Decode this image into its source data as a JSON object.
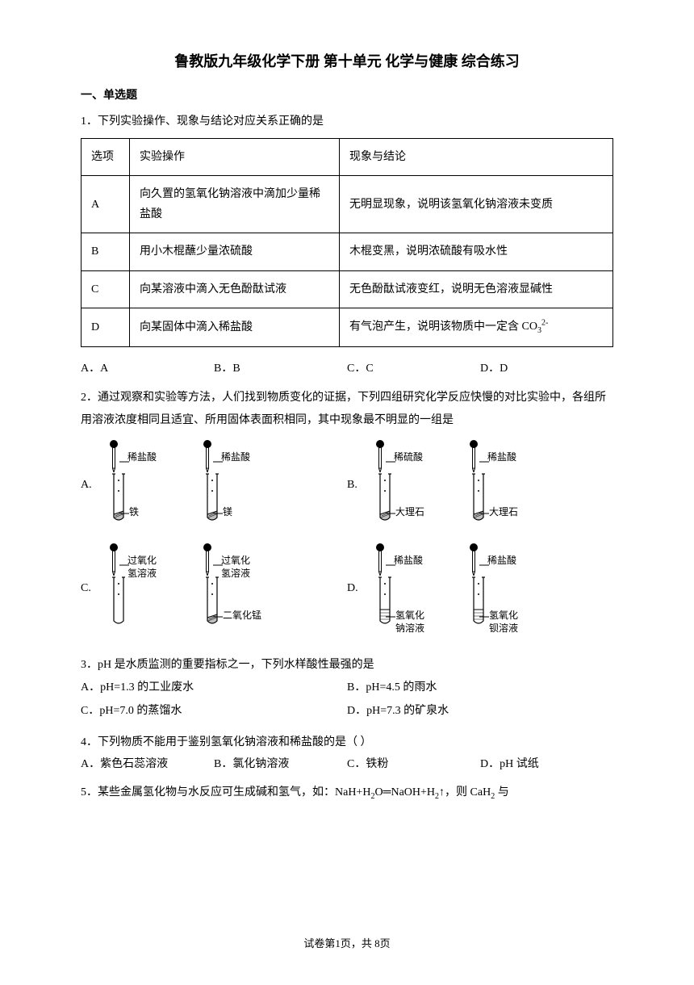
{
  "title": "鲁教版九年级化学下册 第十单元 化学与健康 综合练习",
  "section1": "一、单选题",
  "q1": {
    "stem": "1．下列实验操作、现象与结论对应关系正确的是",
    "headers": [
      "选项",
      "实验操作",
      "现象与结论"
    ],
    "rows": [
      [
        "A",
        "向久置的氢氧化钠溶液中滴加少量稀盐酸",
        "无明显现象，说明该氢氧化钠溶液未变质"
      ],
      [
        "B",
        "用小木棍蘸少量浓硫酸",
        "木棍变黑，说明浓硫酸有吸水性"
      ],
      [
        "C",
        "向某溶液中滴入无色酚酞试液",
        "无色酚酞试液变红，说明无色溶液显碱性"
      ],
      [
        "D",
        "向某固体中滴入稀盐酸",
        "有气泡产生，说明该物质中一定含"
      ]
    ],
    "co3": "CO₃²⁻",
    "opts": [
      "A．A",
      "B．B",
      "C．C",
      "D．D"
    ]
  },
  "q2": {
    "stem": "2．通过观察和实验等方法，人们找到物质变化的证据，下列四组研究化学反应快慢的对比实验中，各组所用溶液浓度相同且适宜、所用固体表面积相同，其中现象最不明显的一组是",
    "diagrams": {
      "A": {
        "top": [
          "稀盐酸",
          "稀盐酸"
        ],
        "bottom": [
          "铁",
          "镁"
        ]
      },
      "B": {
        "top": [
          "稀硫酸",
          "稀盐酸"
        ],
        "bottom": [
          "大理石",
          "大理石"
        ]
      },
      "C": {
        "top": [
          "过氧化\n氢溶液",
          "过氧化\n氢溶液"
        ],
        "bottom": [
          "",
          "二氧化锰"
        ]
      },
      "D": {
        "top": [
          "稀盐酸",
          "稀盐酸"
        ],
        "bottom": [
          "氢氧化\n钠溶液",
          "氢氧化\n钡溶液"
        ]
      }
    }
  },
  "q3": {
    "stem": "3．pH 是水质监测的重要指标之一，下列水样酸性最强的是",
    "opts": [
      "A．pH=1.3 的工业废水",
      "B．pH=4.5 的雨水",
      "C．pH=7.0 的蒸馏水",
      "D．pH=7.3 的矿泉水"
    ]
  },
  "q4": {
    "stem": "4．下列物质不能用于鉴别氢氧化钠溶液和稀盐酸的是（    ）",
    "opts": [
      "A．紫色石蕊溶液",
      "B．氯化钠溶液",
      "C．铁粉",
      "D．pH 试纸"
    ]
  },
  "q5": {
    "stem": "5．某些金属氢化物与水反应可生成碱和氢气，如：NaH+H₂O═NaOH+H₂↑，则 CaH₂ 与"
  },
  "footer": "试卷第1页，共 8页"
}
